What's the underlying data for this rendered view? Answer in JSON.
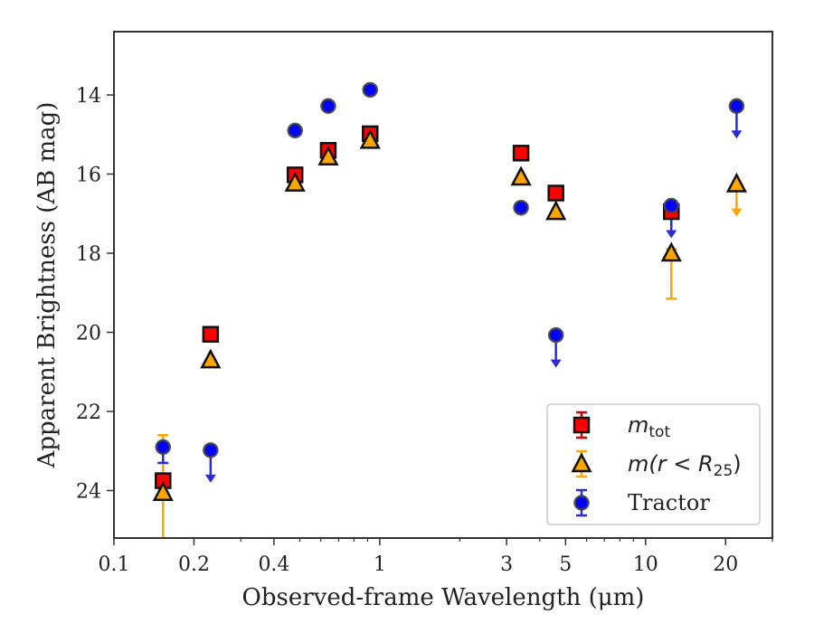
{
  "chart_data": {
    "type": "scatter",
    "title": "",
    "xlabel": "Observed-frame Wavelength (μm)",
    "ylabel": "Apparent Brightness (AB mag)",
    "xscale": "log",
    "xlim": [
      0.1,
      30
    ],
    "ylim": [
      25.2,
      12.4
    ],
    "y_inverted": true,
    "x_ticks": [
      {
        "value": 0.1,
        "label": "0.1"
      },
      {
        "value": 0.2,
        "label": "0.2"
      },
      {
        "value": 0.4,
        "label": "0.4"
      },
      {
        "value": 1,
        "label": "1"
      },
      {
        "value": 3,
        "label": "3"
      },
      {
        "value": 5,
        "label": "5"
      },
      {
        "value": 10,
        "label": "10"
      },
      {
        "value": 20,
        "label": "20"
      }
    ],
    "x_minor_ticks": [
      0.3,
      0.5,
      0.6,
      0.7,
      0.8,
      0.9,
      2,
      4,
      6,
      7,
      8,
      9,
      30
    ],
    "y_ticks": [
      {
        "value": 14,
        "label": "14"
      },
      {
        "value": 16,
        "label": "16"
      },
      {
        "value": 18,
        "label": "18"
      },
      {
        "value": 20,
        "label": "20"
      },
      {
        "value": 22,
        "label": "22"
      },
      {
        "value": 24,
        "label": "24"
      }
    ],
    "grid": false,
    "legend_position": "lower-right",
    "series": [
      {
        "name": "m_tot",
        "legend_main": "m",
        "legend_sub": "tot",
        "marker": "square",
        "color": "#ff0000",
        "errcolor": "#d00000",
        "points": [
          {
            "x": 0.153,
            "y": 23.75
          },
          {
            "x": 0.231,
            "y": 20.05
          },
          {
            "x": 0.48,
            "y": 16.02
          },
          {
            "x": 0.64,
            "y": 15.4
          },
          {
            "x": 0.92,
            "y": 14.98
          },
          {
            "x": 3.4,
            "y": 15.47
          },
          {
            "x": 4.6,
            "y": 16.48
          },
          {
            "x": 12.5,
            "y": 16.95
          }
        ]
      },
      {
        "name": "m(r<R25)",
        "legend_main": "m(r < R",
        "legend_sub": "25",
        "legend_tail": ")",
        "marker": "triangle",
        "color": "#ffa500",
        "errcolor": "#ffa500",
        "points": [
          {
            "x": 0.153,
            "y": 24.05,
            "yerr": [
              22.6,
              25.2
            ]
          },
          {
            "x": 0.231,
            "y": 20.7
          },
          {
            "x": 0.48,
            "y": 16.23
          },
          {
            "x": 0.64,
            "y": 15.57
          },
          {
            "x": 0.92,
            "y": 15.15
          },
          {
            "x": 3.4,
            "y": 16.08
          },
          {
            "x": 4.6,
            "y": 16.95
          },
          {
            "x": 12.5,
            "y": 18.0,
            "yerr": [
              17.9,
              19.15
            ]
          },
          {
            "x": 22,
            "y": 16.25,
            "upper_limit": true
          }
        ]
      },
      {
        "name": "Tractor",
        "legend_main": "Tractor",
        "marker": "circle",
        "color": "#0000ff",
        "errcolor": "#2b2bd6",
        "points": [
          {
            "x": 0.153,
            "y": 22.9,
            "yerr": [
              22.9,
              23.3
            ]
          },
          {
            "x": 0.231,
            "y": 22.98,
            "upper_limit": true
          },
          {
            "x": 0.48,
            "y": 14.9
          },
          {
            "x": 0.64,
            "y": 14.28
          },
          {
            "x": 0.92,
            "y": 13.87
          },
          {
            "x": 3.4,
            "y": 16.85
          },
          {
            "x": 4.6,
            "y": 20.07,
            "upper_limit": true
          },
          {
            "x": 12.5,
            "y": 16.8,
            "upper_limit": true
          },
          {
            "x": 22,
            "y": 14.28,
            "upper_limit": true
          }
        ]
      }
    ]
  }
}
